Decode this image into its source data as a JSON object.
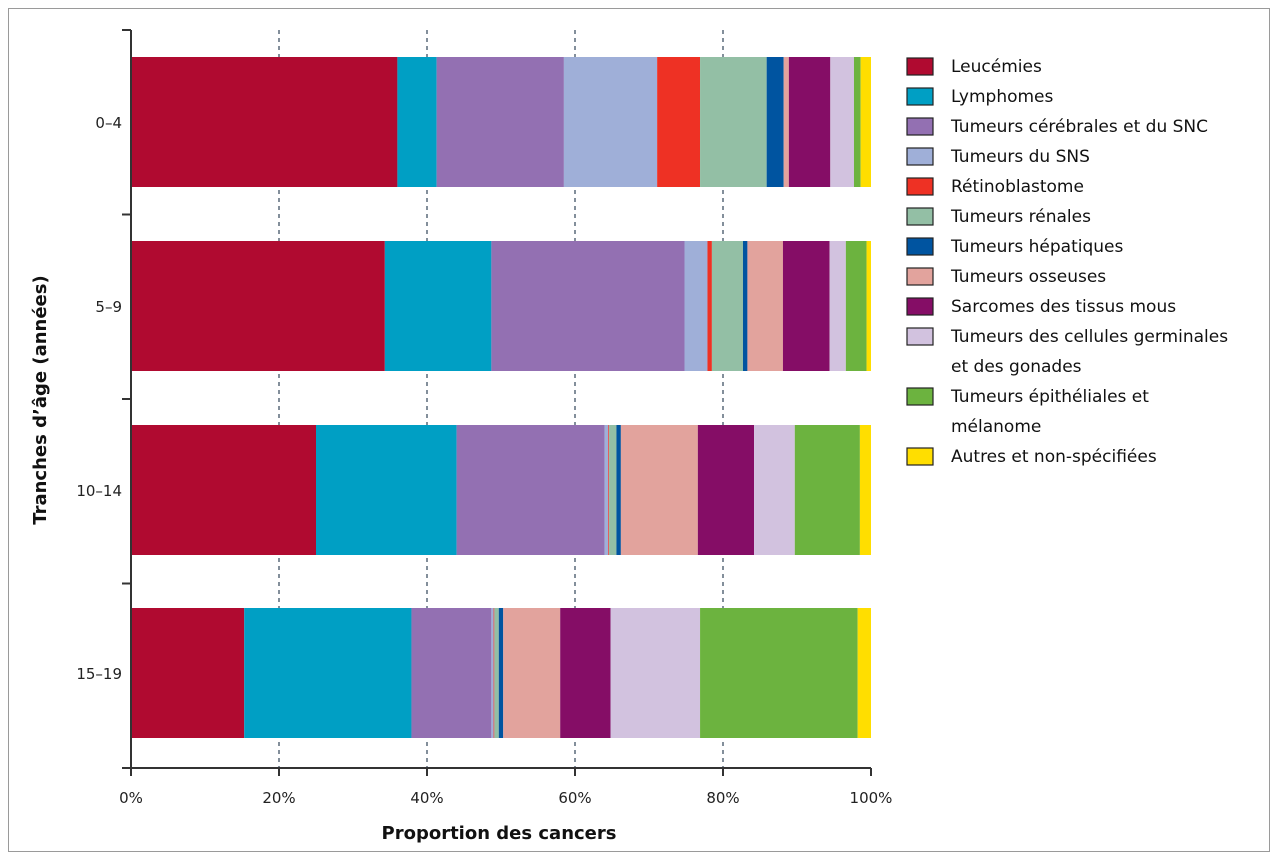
{
  "chart_data": {
    "type": "bar",
    "orientation": "horizontal",
    "stacked": true,
    "xlabel": "Proportion des cancers",
    "ylabel": "Tranches d’âge (années)",
    "xlim": [
      0,
      100
    ],
    "x_ticks": [
      "0%",
      "20%",
      "40%",
      "60%",
      "80%",
      "100%"
    ],
    "grid": "vertical dashed",
    "legend_position": "right",
    "categories": [
      "0–4",
      "5–9",
      "10–14",
      "15–19"
    ],
    "series": [
      {
        "name": "Leucémies",
        "color": "#b00a30",
        "values": [
          36,
          34.3,
          25,
          15.3
        ]
      },
      {
        "name": "Lymphomes",
        "color": "#009fc4",
        "values": [
          5.3,
          14.4,
          19,
          22.6
        ]
      },
      {
        "name": "Tumeurs cérébrales et du SNC",
        "color": "#9370b2",
        "values": [
          17.2,
          26.1,
          20,
          10.8
        ]
      },
      {
        "name": "Tumeurs du SNS",
        "color": "#9fafd8",
        "values": [
          12.6,
          3.1,
          0.5,
          0.3
        ]
      },
      {
        "name": "Rétinoblastome",
        "color": "#ee3124",
        "values": [
          5.8,
          0.6,
          0.1,
          0.1
        ]
      },
      {
        "name": "Tumeurs rénales",
        "color": "#93bfa5",
        "values": [
          9,
          4.2,
          1,
          0.6
        ]
      },
      {
        "name": "Tumeurs hépatiques",
        "color": "#0054a0",
        "values": [
          2.3,
          0.6,
          0.6,
          0.6
        ]
      },
      {
        "name": "Tumeurs osseuses",
        "color": "#e2a39d",
        "values": [
          0.7,
          4.8,
          10.4,
          7.7
        ]
      },
      {
        "name": "Sarcomes des tissus mous",
        "color": "#850d66",
        "values": [
          5.6,
          6.3,
          7.6,
          6.8
        ]
      },
      {
        "name": "Tumeurs des cellules germinales et des gonades",
        "color": "#d2c2df",
        "values": [
          3.2,
          2.2,
          5.5,
          12.1
        ]
      },
      {
        "name": "Tumeurs épithéliales et mélanome",
        "color": "#6cb33f",
        "values": [
          0.9,
          2.8,
          8.8,
          21.3
        ]
      },
      {
        "name": "Autres et non-spécifiées",
        "color": "#ffde00",
        "values": [
          1.4,
          0.6,
          1.5,
          1.8
        ]
      }
    ],
    "legend_lines": [
      [
        "Leucémies"
      ],
      [
        "Lymphomes"
      ],
      [
        "Tumeurs cérébrales et du SNC"
      ],
      [
        "Tumeurs du SNS"
      ],
      [
        "Rétinoblastome"
      ],
      [
        "Tumeurs rénales"
      ],
      [
        "Tumeurs hépatiques"
      ],
      [
        "Tumeurs osseuses"
      ],
      [
        "Sarcomes des tissus mous"
      ],
      [
        "Tumeurs des cellules germinales",
        "et des gonades"
      ],
      [
        "Tumeurs épithéliales et",
        "mélanome"
      ],
      [
        "Autres et non-spécifiées"
      ]
    ]
  }
}
